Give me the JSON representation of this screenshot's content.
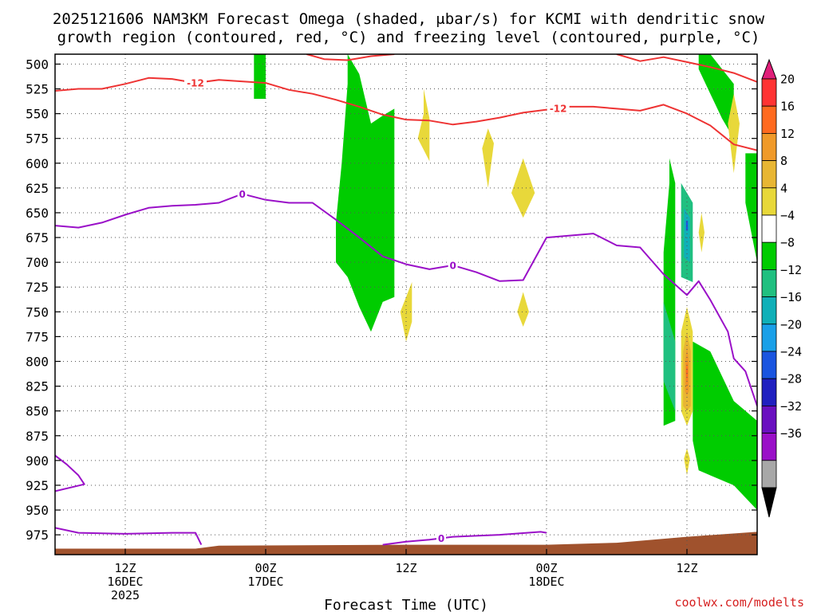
{
  "title": {
    "line1": "2025121606 NAM3KM Forecast Omega (shaded, μbar/s) for KCMI with dendritic snow",
    "line2": "growth region (contoured, red, °C) and freezing level (contoured, purple, °C)"
  },
  "credit": "coolwx.com/modelts",
  "colors": {
    "dgz_contour": "#ee3333",
    "freezing_contour": "#9a10c8",
    "terrain": "#a0522d",
    "grid": "#555555"
  },
  "chart_data": {
    "type": "time-height cross section",
    "xlabel": "Forecast Time (UTC)",
    "ylabel": "",
    "y_axis": {
      "unit": "hPa",
      "inverted": true,
      "ticks": [
        500,
        525,
        550,
        575,
        600,
        625,
        650,
        675,
        700,
        725,
        750,
        775,
        800,
        825,
        850,
        875,
        900,
        925,
        950,
        975
      ],
      "range": [
        995,
        490
      ]
    },
    "x_axis": {
      "range": [
        "2025-12-16T06:00Z",
        "2025-12-18T18:00Z"
      ],
      "ticks": [
        {
          "time": "2025-12-16T12:00Z",
          "lines": [
            "12Z",
            "16DEC",
            "2025"
          ]
        },
        {
          "time": "2025-12-17T00:00Z",
          "lines": [
            "00Z",
            "17DEC"
          ]
        },
        {
          "time": "2025-12-17T12:00Z",
          "lines": [
            "12Z"
          ]
        },
        {
          "time": "2025-12-18T00:00Z",
          "lines": [
            "00Z",
            "18DEC"
          ]
        },
        {
          "time": "2025-12-18T12:00Z",
          "lines": [
            "12Z"
          ]
        }
      ],
      "grid": true
    },
    "colorbar": {
      "unit": "μbar/s",
      "levels": [
        20,
        16,
        12,
        8,
        4,
        -4,
        -8,
        -12,
        -16,
        -20,
        -24,
        -28,
        -32,
        -36
      ],
      "colors": [
        "#ff3333",
        "#ff6a1f",
        "#f09a2a",
        "#e8b633",
        "#e8d83a",
        "#ffffff",
        "#00cc00",
        "#20c080",
        "#10b0b8",
        "#1aa0e8",
        "#1a55e0",
        "#2020c0",
        "#6a10c0",
        "#9a10c8",
        "#a8a8a8"
      ],
      "top_color": "#e01f79",
      "bottom_color": "#000000"
    },
    "dgz_contour": {
      "label": "-12",
      "color": "#ee3333",
      "unit": "°C",
      "label_time": "2025-12-16T18:00Z",
      "points": [
        [
          "2025-12-16T06:00Z",
          527
        ],
        [
          "2025-12-16T08:00Z",
          525
        ],
        [
          "2025-12-16T10:00Z",
          525
        ],
        [
          "2025-12-16T12:00Z",
          520
        ],
        [
          "2025-12-16T14:00Z",
          514
        ],
        [
          "2025-12-16T16:00Z",
          515
        ],
        [
          "2025-12-16T18:00Z",
          519
        ],
        [
          "2025-12-16T20:00Z",
          516
        ],
        [
          "2025-12-17T00:00Z",
          519
        ],
        [
          "2025-12-17T02:00Z",
          526
        ],
        [
          "2025-12-17T04:00Z",
          530
        ],
        [
          "2025-12-17T06:00Z",
          536
        ],
        [
          "2025-12-17T08:00Z",
          543
        ],
        [
          "2025-12-17T10:00Z",
          551
        ],
        [
          "2025-12-17T12:00Z",
          556
        ],
        [
          "2025-12-17T14:00Z",
          557
        ],
        [
          "2025-12-17T16:00Z",
          561
        ],
        [
          "2025-12-17T18:00Z",
          558
        ],
        [
          "2025-12-17T20:00Z",
          554
        ],
        [
          "2025-12-17T22:00Z",
          549
        ],
        [
          "2025-12-18T00:00Z",
          546
        ],
        [
          "2025-12-18T02:00Z",
          543
        ],
        [
          "2025-12-18T04:00Z",
          543
        ],
        [
          "2025-12-18T06:00Z",
          545
        ],
        [
          "2025-12-18T08:00Z",
          547
        ],
        [
          "2025-12-18T10:00Z",
          541
        ],
        [
          "2025-12-18T12:00Z",
          550
        ],
        [
          "2025-12-18T14:00Z",
          562
        ],
        [
          "2025-12-18T16:00Z",
          581
        ],
        [
          "2025-12-18T18:00Z",
          587
        ]
      ],
      "upper_points": [
        [
          "2025-12-17T03:30Z",
          490
        ],
        [
          "2025-12-17T05:00Z",
          495
        ],
        [
          "2025-12-17T07:00Z",
          496
        ],
        [
          "2025-12-17T09:00Z",
          492
        ],
        [
          "2025-12-17T11:00Z",
          490
        ]
      ],
      "right_points": [
        [
          "2025-12-18T06:00Z",
          490
        ],
        [
          "2025-12-18T08:00Z",
          497
        ],
        [
          "2025-12-18T10:00Z",
          493
        ],
        [
          "2025-12-18T12:00Z",
          498
        ],
        [
          "2025-12-18T14:00Z",
          503
        ],
        [
          "2025-12-18T16:00Z",
          509
        ],
        [
          "2025-12-18T18:00Z",
          518
        ]
      ]
    },
    "freezing_contour": {
      "label": "0",
      "color": "#9a10c8",
      "unit": "°C",
      "label_times": [
        "2025-12-16T22:00Z",
        "2025-12-17T16:00Z"
      ],
      "points": [
        [
          "2025-12-16T06:00Z",
          663
        ],
        [
          "2025-12-16T08:00Z",
          665
        ],
        [
          "2025-12-16T10:00Z",
          660
        ],
        [
          "2025-12-16T12:00Z",
          652
        ],
        [
          "2025-12-16T14:00Z",
          645
        ],
        [
          "2025-12-16T16:00Z",
          643
        ],
        [
          "2025-12-16T18:00Z",
          642
        ],
        [
          "2025-12-16T20:00Z",
          640
        ],
        [
          "2025-12-16T22:00Z",
          631
        ],
        [
          "2025-12-17T00:00Z",
          637
        ],
        [
          "2025-12-17T02:00Z",
          640
        ],
        [
          "2025-12-17T04:00Z",
          640
        ],
        [
          "2025-12-17T06:00Z",
          657
        ],
        [
          "2025-12-17T08:00Z",
          675
        ],
        [
          "2025-12-17T10:00Z",
          694
        ],
        [
          "2025-12-17T12:00Z",
          702
        ],
        [
          "2025-12-17T14:00Z",
          707
        ],
        [
          "2025-12-17T16:00Z",
          703
        ],
        [
          "2025-12-17T18:00Z",
          710
        ],
        [
          "2025-12-17T20:00Z",
          719
        ],
        [
          "2025-12-17T22:00Z",
          718
        ],
        [
          "2025-12-18T00:00Z",
          675
        ],
        [
          "2025-12-18T02:00Z",
          673
        ],
        [
          "2025-12-18T04:00Z",
          671
        ],
        [
          "2025-12-18T06:00Z",
          683
        ],
        [
          "2025-12-18T08:00Z",
          685
        ],
        [
          "2025-12-18T10:00Z",
          712
        ],
        [
          "2025-12-18T12:00Z",
          733
        ],
        [
          "2025-12-18T13:00Z",
          719
        ],
        [
          "2025-12-18T14:00Z",
          738
        ],
        [
          "2025-12-18T15:30Z",
          770
        ],
        [
          "2025-12-18T16:00Z",
          797
        ],
        [
          "2025-12-18T17:00Z",
          810
        ],
        [
          "2025-12-18T18:00Z",
          845
        ]
      ],
      "lower_points": [
        [
          "2025-12-16T06:00Z",
          968
        ],
        [
          "2025-12-16T08:00Z",
          973
        ],
        [
          "2025-12-16T12:00Z",
          974
        ],
        [
          "2025-12-16T16:00Z",
          973
        ],
        [
          "2025-12-16T18:00Z",
          973
        ],
        [
          "2025-12-16T18:30Z",
          985
        ]
      ],
      "lower_points2": [
        [
          "2025-12-17T10:00Z",
          985
        ],
        [
          "2025-12-17T12:00Z",
          982
        ],
        [
          "2025-12-17T14:00Z",
          980
        ],
        [
          "2025-12-17T16:00Z",
          977
        ],
        [
          "2025-12-17T20:00Z",
          975
        ],
        [
          "2025-12-17T23:30Z",
          972
        ],
        [
          "2025-12-18T00:00Z",
          973
        ]
      ],
      "edge_points": [
        [
          "2025-12-16T06:00Z",
          895
        ],
        [
          "2025-12-16T07:00Z",
          904
        ],
        [
          "2025-12-16T08:00Z",
          915
        ],
        [
          "2025-12-16T08:30Z",
          924
        ],
        [
          "2025-12-16T06:00Z",
          931
        ]
      ]
    },
    "terrain": {
      "color": "#a0522d",
      "surface_points": [
        [
          "2025-12-16T06:00Z",
          989
        ],
        [
          "2025-12-16T18:00Z",
          989
        ],
        [
          "2025-12-16T20:00Z",
          986
        ],
        [
          "2025-12-17T12:00Z",
          985
        ],
        [
          "2025-12-18T00:00Z",
          985
        ],
        [
          "2025-12-18T06:00Z",
          983
        ],
        [
          "2025-12-18T12:00Z",
          977
        ],
        [
          "2025-12-18T18:00Z",
          972
        ]
      ]
    },
    "omega_regions": [
      {
        "value": -6,
        "points": [
          [
            "2025-12-16T23:00Z",
            490
          ],
          [
            "2025-12-17T00:00Z",
            490
          ],
          [
            "2025-12-17T00:00Z",
            535
          ],
          [
            "2025-12-16T23:00Z",
            535
          ]
        ]
      },
      {
        "value": -6,
        "points": [
          [
            "2025-12-17T07:00Z",
            490
          ],
          [
            "2025-12-17T08:00Z",
            510
          ],
          [
            "2025-12-17T09:00Z",
            560
          ],
          [
            "2025-12-17T10:00Z",
            552
          ],
          [
            "2025-12-17T11:00Z",
            545
          ],
          [
            "2025-12-17T11:00Z",
            735
          ],
          [
            "2025-12-17T10:00Z",
            740
          ],
          [
            "2025-12-17T09:00Z",
            770
          ],
          [
            "2025-12-17T08:00Z",
            745
          ],
          [
            "2025-12-17T07:00Z",
            715
          ],
          [
            "2025-12-17T06:00Z",
            700
          ],
          [
            "2025-12-17T06:00Z",
            660
          ],
          [
            "2025-12-17T06:30Z",
            600
          ],
          [
            "2025-12-17T07:00Z",
            520
          ]
        ]
      },
      {
        "value": -6,
        "points": [
          [
            "2025-12-18T10:30Z",
            595
          ],
          [
            "2025-12-18T11:00Z",
            620
          ],
          [
            "2025-12-18T11:00Z",
            860
          ],
          [
            "2025-12-18T10:00Z",
            865
          ],
          [
            "2025-12-18T10:00Z",
            690
          ],
          [
            "2025-12-18T10:30Z",
            620
          ]
        ]
      },
      {
        "value": -6,
        "points": [
          [
            "2025-12-18T12:30Z",
            780
          ],
          [
            "2025-12-18T14:00Z",
            790
          ],
          [
            "2025-12-18T16:00Z",
            840
          ],
          [
            "2025-12-18T18:00Z",
            860
          ],
          [
            "2025-12-18T18:00Z",
            950
          ],
          [
            "2025-12-18T16:00Z",
            925
          ],
          [
            "2025-12-18T13:00Z",
            910
          ],
          [
            "2025-12-18T12:30Z",
            880
          ]
        ]
      },
      {
        "value": -6,
        "points": [
          [
            "2025-12-18T13:00Z",
            490
          ],
          [
            "2025-12-18T14:00Z",
            490
          ],
          [
            "2025-12-18T16:00Z",
            520
          ],
          [
            "2025-12-18T16:00Z",
            575
          ],
          [
            "2025-12-18T15:00Z",
            555
          ],
          [
            "2025-12-18T14:00Z",
            530
          ],
          [
            "2025-12-18T13:00Z",
            505
          ]
        ]
      },
      {
        "value": -6,
        "points": [
          [
            "2025-12-18T17:00Z",
            590
          ],
          [
            "2025-12-18T18:00Z",
            590
          ],
          [
            "2025-12-18T18:00Z",
            700
          ],
          [
            "2025-12-18T17:00Z",
            640
          ]
        ]
      },
      {
        "value": -10,
        "points": [
          [
            "2025-12-18T10:00Z",
            740
          ],
          [
            "2025-12-18T11:00Z",
            780
          ],
          [
            "2025-12-18T11:00Z",
            850
          ],
          [
            "2025-12-18T10:00Z",
            820
          ]
        ]
      },
      {
        "value": -10,
        "points": [
          [
            "2025-12-18T11:30Z",
            620
          ],
          [
            "2025-12-18T12:30Z",
            640
          ],
          [
            "2025-12-18T12:30Z",
            720
          ],
          [
            "2025-12-18T11:30Z",
            715
          ]
        ]
      },
      {
        "value": -14,
        "points": [
          [
            "2025-12-18T11:45Z",
            645
          ],
          [
            "2025-12-18T12:15Z",
            655
          ],
          [
            "2025-12-18T12:15Z",
            700
          ],
          [
            "2025-12-18T11:45Z",
            695
          ]
        ]
      },
      {
        "value": -22,
        "points": [
          [
            "2025-12-18T11:55Z",
            658
          ],
          [
            "2025-12-18T12:05Z",
            658
          ],
          [
            "2025-12-18T12:05Z",
            668
          ],
          [
            "2025-12-18T11:55Z",
            668
          ]
        ]
      },
      {
        "value": 6,
        "points": [
          [
            "2025-12-17T13:30Z",
            525
          ],
          [
            "2025-12-17T14:00Z",
            555
          ],
          [
            "2025-12-17T14:00Z",
            598
          ],
          [
            "2025-12-17T13:00Z",
            575
          ],
          [
            "2025-12-17T13:30Z",
            550
          ]
        ]
      },
      {
        "value": 6,
        "points": [
          [
            "2025-12-17T19:00Z",
            565
          ],
          [
            "2025-12-17T19:30Z",
            580
          ],
          [
            "2025-12-17T19:00Z",
            625
          ],
          [
            "2025-12-17T18:30Z",
            585
          ]
        ]
      },
      {
        "value": 6,
        "points": [
          [
            "2025-12-17T22:00Z",
            595
          ],
          [
            "2025-12-17T23:00Z",
            630
          ],
          [
            "2025-12-17T22:00Z",
            655
          ],
          [
            "2025-12-17T21:00Z",
            630
          ]
        ]
      },
      {
        "value": 6,
        "points": [
          [
            "2025-12-17T12:30Z",
            720
          ],
          [
            "2025-12-17T12:30Z",
            760
          ],
          [
            "2025-12-17T12:00Z",
            780
          ],
          [
            "2025-12-17T11:30Z",
            750
          ]
        ]
      },
      {
        "value": 6,
        "points": [
          [
            "2025-12-17T22:00Z",
            730
          ],
          [
            "2025-12-17T22:30Z",
            750
          ],
          [
            "2025-12-17T22:00Z",
            765
          ],
          [
            "2025-12-17T21:30Z",
            750
          ]
        ]
      },
      {
        "value": 6,
        "points": [
          [
            "2025-12-18T12:00Z",
            745
          ],
          [
            "2025-12-18T12:30Z",
            770
          ],
          [
            "2025-12-18T12:30Z",
            850
          ],
          [
            "2025-12-18T12:00Z",
            865
          ],
          [
            "2025-12-18T11:30Z",
            850
          ],
          [
            "2025-12-18T11:30Z",
            770
          ]
        ]
      },
      {
        "value": 6,
        "points": [
          [
            "2025-12-18T13:15Z",
            650
          ],
          [
            "2025-12-18T13:30Z",
            670
          ],
          [
            "2025-12-18T13:15Z",
            690
          ],
          [
            "2025-12-18T13:00Z",
            670
          ]
        ]
      },
      {
        "value": 6,
        "points": [
          [
            "2025-12-18T16:00Z",
            530
          ],
          [
            "2025-12-18T16:30Z",
            560
          ],
          [
            "2025-12-18T16:00Z",
            610
          ],
          [
            "2025-12-18T15:30Z",
            560
          ]
        ]
      },
      {
        "value": 6,
        "points": [
          [
            "2025-12-18T12:00Z",
            888
          ],
          [
            "2025-12-18T12:15Z",
            898
          ],
          [
            "2025-12-18T12:00Z",
            915
          ],
          [
            "2025-12-18T11:45Z",
            898
          ]
        ]
      },
      {
        "value": 10,
        "points": [
          [
            "2025-12-18T12:00Z",
            770
          ],
          [
            "2025-12-18T12:20Z",
            790
          ],
          [
            "2025-12-18T12:20Z",
            845
          ],
          [
            "2025-12-18T12:00Z",
            850
          ],
          [
            "2025-12-18T11:40Z",
            845
          ],
          [
            "2025-12-18T11:40Z",
            790
          ]
        ]
      },
      {
        "value": 14,
        "points": [
          [
            "2025-12-18T12:00Z",
            785
          ],
          [
            "2025-12-18T12:10Z",
            800
          ],
          [
            "2025-12-18T12:10Z",
            830
          ],
          [
            "2025-12-18T12:00Z",
            835
          ],
          [
            "2025-12-18T11:50Z",
            830
          ],
          [
            "2025-12-18T11:50Z",
            800
          ]
        ]
      },
      {
        "value": 18,
        "points": [
          [
            "2025-12-18T12:00Z",
            800
          ],
          [
            "2025-12-18T12:05Z",
            810
          ],
          [
            "2025-12-18T12:00Z",
            825
          ],
          [
            "2025-12-18T11:55Z",
            810
          ]
        ]
      }
    ]
  }
}
